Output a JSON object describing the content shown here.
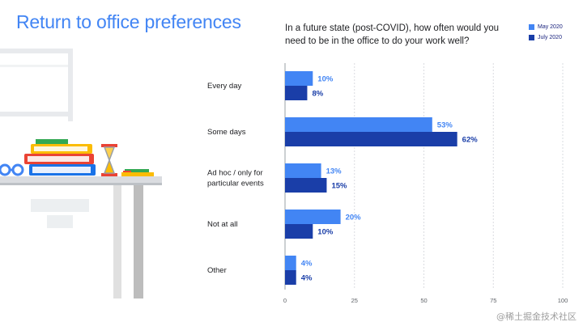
{
  "title": "Return to office preferences",
  "chart_data": {
    "type": "bar",
    "orientation": "horizontal",
    "title": "In a future state (post-COVID), how often would you need to be in the office to do your work well?",
    "categories": [
      [
        "Every day"
      ],
      [
        "Some days"
      ],
      [
        "Ad hoc / only for",
        "particular events"
      ],
      [
        "Not at all"
      ],
      [
        "Other"
      ]
    ],
    "series": [
      {
        "name": "May 2020",
        "color": "#4285f4",
        "values": [
          10,
          53,
          13,
          20,
          4
        ]
      },
      {
        "name": "July 2020",
        "color": "#1a3ea8",
        "values": [
          8,
          62,
          15,
          10,
          4
        ]
      }
    ],
    "value_suffix": "%",
    "xlim": [
      0,
      100
    ],
    "xticks": [
      0,
      25,
      50,
      75,
      100
    ],
    "grid": true,
    "legend_position": "top-right"
  },
  "watermark": "@稀土掘金技术社区"
}
